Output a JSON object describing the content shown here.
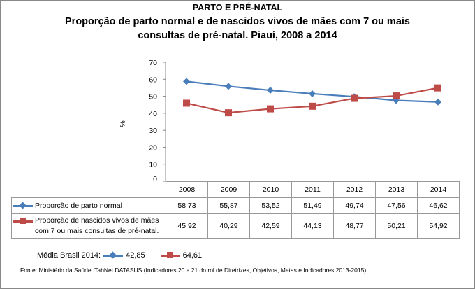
{
  "header": {
    "section": "PARTO E PRÉ-NATAL",
    "title_line1": "Proporção de parto normal e de nascidos vivos de mães com 7 ou mais",
    "title_line2": "consultas de pré-natal. Piauí, 2008 a 2014"
  },
  "chart_data": {
    "type": "line",
    "categories": [
      "2008",
      "2009",
      "2010",
      "2011",
      "2012",
      "2013",
      "2014"
    ],
    "ylabel": "%",
    "ylim": [
      0,
      70
    ],
    "yticks": [
      "0",
      "10",
      "20",
      "30",
      "40",
      "50",
      "60",
      "70"
    ],
    "grid": false,
    "legend": "data-table",
    "series": [
      {
        "name": "Proporção de parto normal",
        "color": "#4a7ebb",
        "marker": "diamond",
        "values": [
          58.73,
          55.87,
          53.52,
          51.49,
          49.74,
          47.56,
          46.62
        ],
        "labels": [
          "58,73",
          "55,87",
          "53,52",
          "51,49",
          "49,74",
          "47,56",
          "46,62"
        ]
      },
      {
        "name_line1": "Proporção de nascidos vivos de mães",
        "name_line2": "com 7 ou mais consultas de pré-natal.",
        "color": "#be4b48",
        "marker": "square",
        "values": [
          45.92,
          40.29,
          42.59,
          44.13,
          48.77,
          50.21,
          54.92
        ],
        "labels": [
          "45,92",
          "40,29",
          "42,59",
          "44,13",
          "48,77",
          "50,21",
          "54,92"
        ]
      }
    ]
  },
  "media": {
    "label": "Média Brasil 2014:",
    "parto_normal": "42,85",
    "pre_natal": "64,61"
  },
  "fonte": "Fonte: Ministério da Saúde. TabNet DATASUS (Indicadores 20 e 21 do rol de Diretrizes, Objetivos, Metas e Indicadores 2013-2015)."
}
